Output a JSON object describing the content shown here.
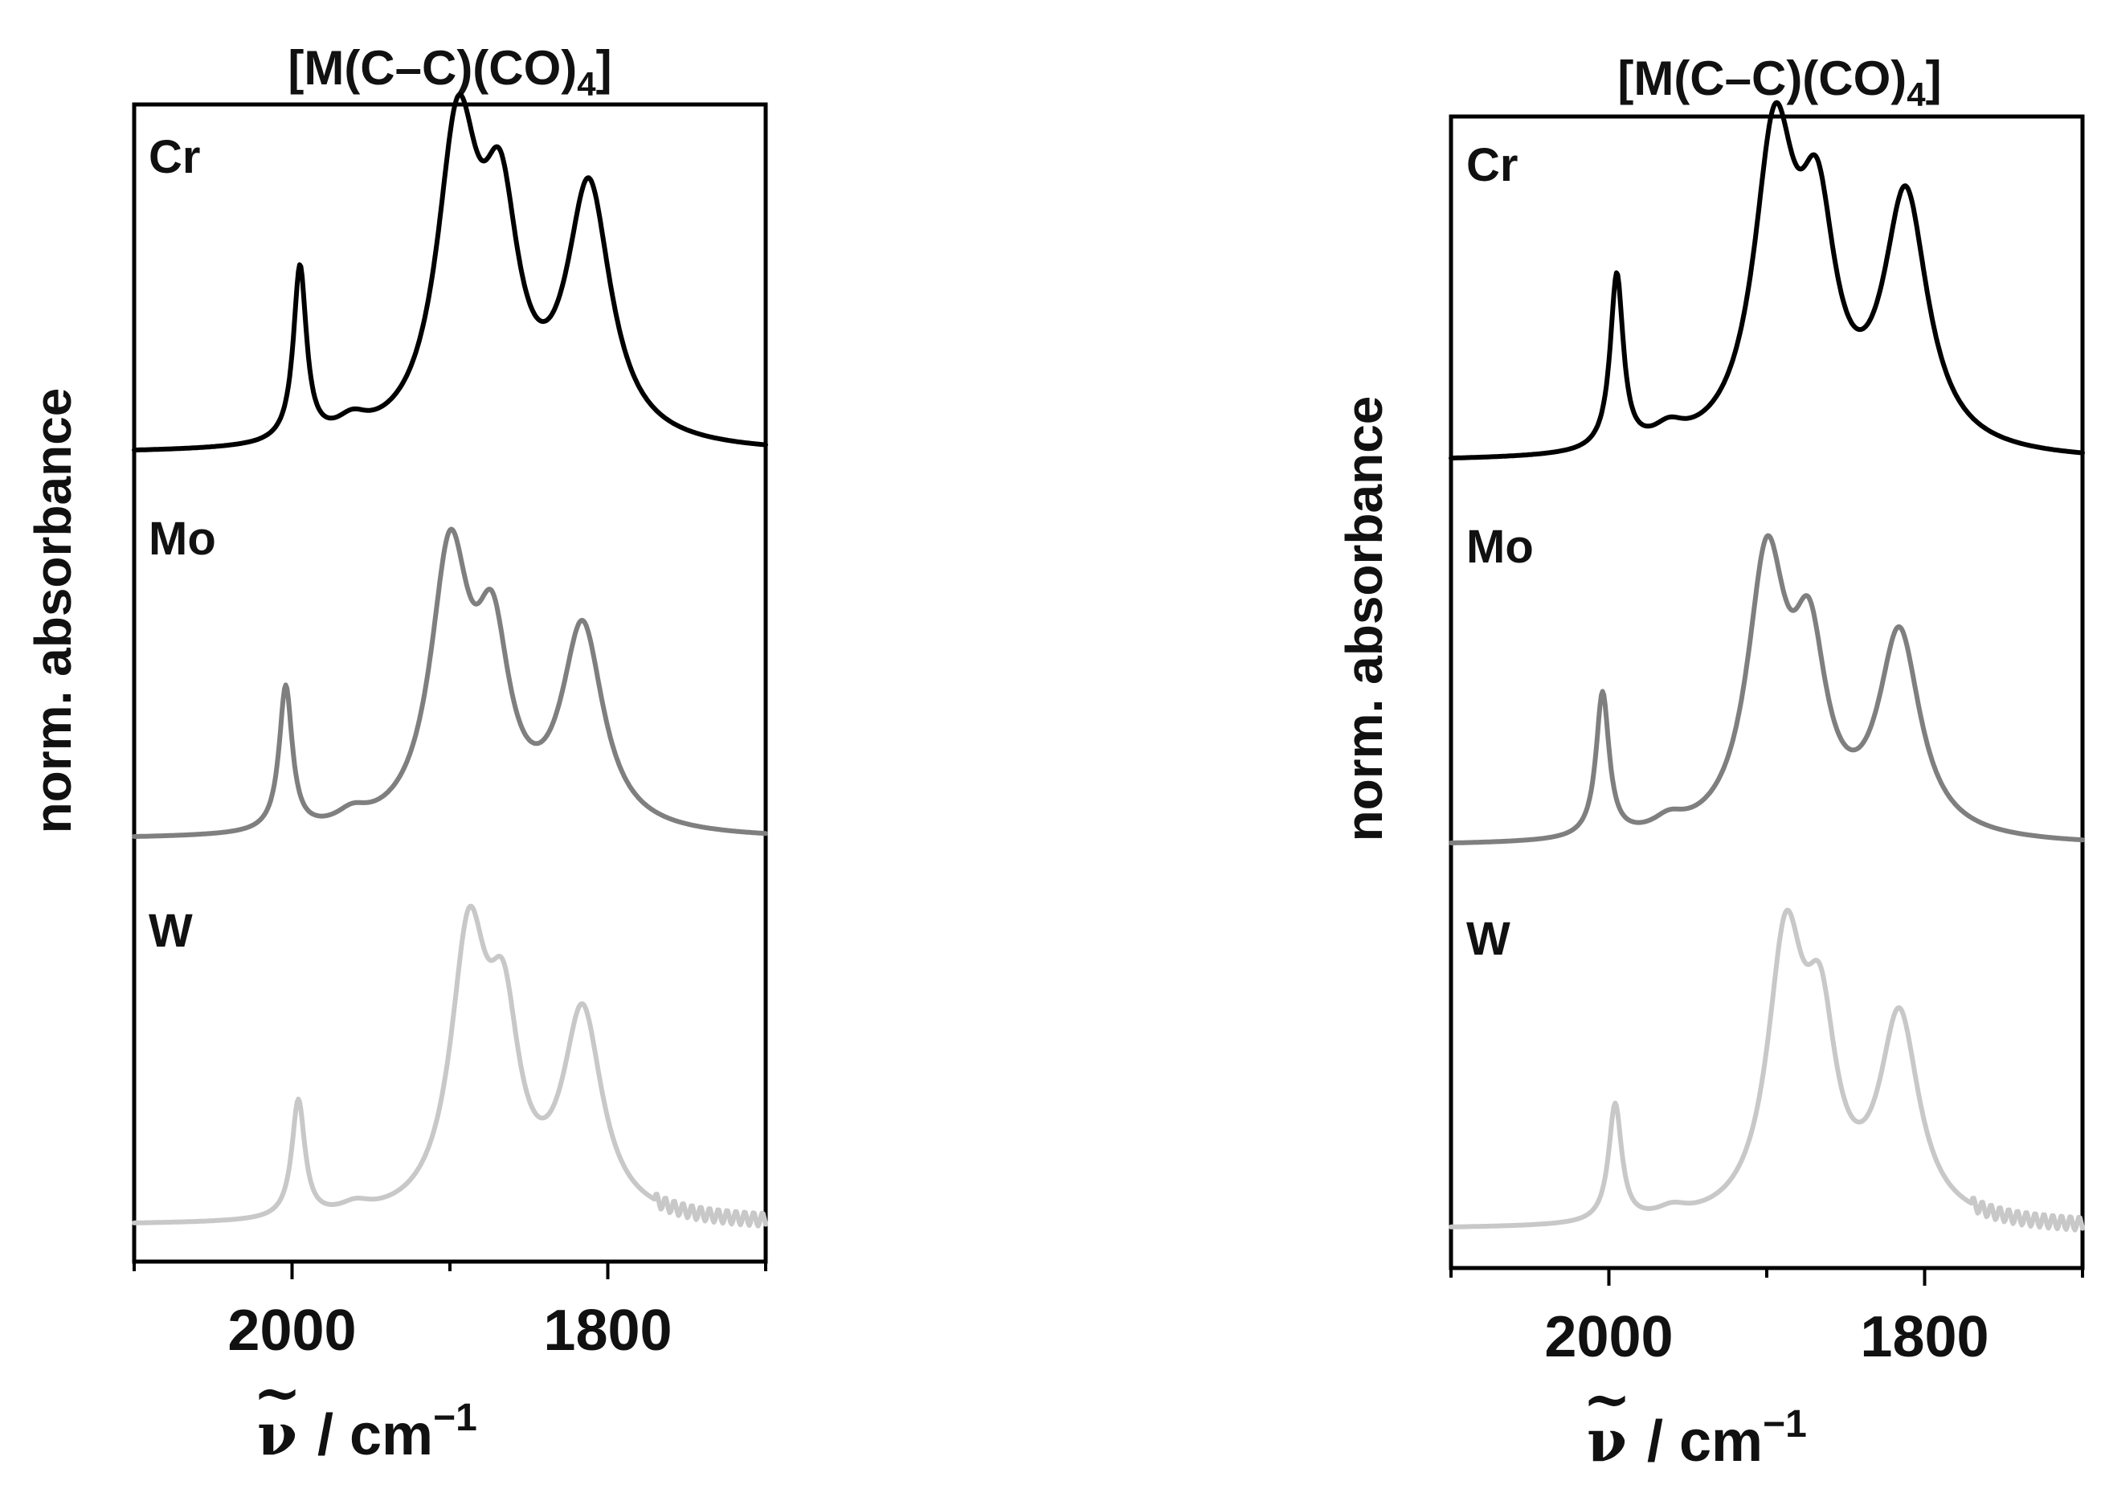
{
  "chart_data": [
    {
      "type": "line",
      "panel": "left",
      "title_main": "[M(C–C)(CO)",
      "title_sub": "4",
      "title_end": "]",
      "ylabel": "norm. absorbance",
      "xlabel_symbol": "ν",
      "xlabel_tilde": "~",
      "xlabel_unit": " / cm",
      "xlabel_exp": "−1",
      "xlim": [
        2100,
        1700
      ],
      "xticks_major": [
        2000,
        1800
      ],
      "xtick_labels": [
        "2000",
        "1800"
      ],
      "xticks_minor": [
        2100,
        1900,
        1700
      ],
      "series": [
        {
          "name": "Cr",
          "color": "#000000",
          "offset": 2.0,
          "baseline": 0.0,
          "bands": [
            {
              "x": 1995,
              "h": 0.52,
              "w": 5
            },
            {
              "x": 1962,
              "h": 0.05,
              "w": 12
            },
            {
              "x": 1895,
              "h": 0.9,
              "w": 16
            },
            {
              "x": 1868,
              "h": 0.6,
              "w": 14
            },
            {
              "x": 1812,
              "h": 0.75,
              "w": 17
            }
          ]
        },
        {
          "name": "Mo",
          "color": "#7f7f7f",
          "offset": 1.0,
          "baseline": 0.0,
          "bands": [
            {
              "x": 2004,
              "h": 0.43,
              "w": 5
            },
            {
              "x": 1962,
              "h": 0.04,
              "w": 12
            },
            {
              "x": 1900,
              "h": 0.8,
              "w": 15
            },
            {
              "x": 1873,
              "h": 0.5,
              "w": 13
            },
            {
              "x": 1816,
              "h": 0.6,
              "w": 16
            }
          ]
        },
        {
          "name": "W",
          "color": "#c8c8c8",
          "offset": 0.0,
          "baseline": 0.0,
          "bands": [
            {
              "x": 1996,
              "h": 0.35,
              "w": 5
            },
            {
              "x": 1960,
              "h": 0.03,
              "w": 12
            },
            {
              "x": 1888,
              "h": 0.8,
              "w": 14
            },
            {
              "x": 1866,
              "h": 0.5,
              "w": 12
            },
            {
              "x": 1816,
              "h": 0.6,
              "w": 15
            }
          ]
        }
      ]
    },
    {
      "type": "line",
      "panel": "right",
      "title_main": "[M(C–C)(CO)",
      "title_sub": "4",
      "title_end": "]",
      "ylabel": "norm. absorbance",
      "xlabel_symbol": "ν",
      "xlabel_tilde": "~",
      "xlabel_unit": " / cm",
      "xlabel_exp": "−1",
      "xlim": [
        2100,
        1700
      ],
      "xticks_major": [
        2000,
        1800
      ],
      "xtick_labels": [
        "2000",
        "1800"
      ],
      "xticks_minor": [
        2100,
        1900,
        1700
      ],
      "series": [
        {
          "name": "Cr",
          "color": "#000000",
          "offset": 2.0,
          "baseline": 0.0,
          "bands": [
            {
              "x": 1995,
              "h": 0.52,
              "w": 5
            },
            {
              "x": 1962,
              "h": 0.05,
              "w": 12
            },
            {
              "x": 1895,
              "h": 0.9,
              "w": 16
            },
            {
              "x": 1868,
              "h": 0.6,
              "w": 14
            },
            {
              "x": 1812,
              "h": 0.75,
              "w": 17
            }
          ]
        },
        {
          "name": "Mo",
          "color": "#7f7f7f",
          "offset": 1.0,
          "baseline": 0.0,
          "bands": [
            {
              "x": 2004,
              "h": 0.43,
              "w": 5
            },
            {
              "x": 1962,
              "h": 0.04,
              "w": 12
            },
            {
              "x": 1900,
              "h": 0.8,
              "w": 15
            },
            {
              "x": 1873,
              "h": 0.5,
              "w": 13
            },
            {
              "x": 1816,
              "h": 0.6,
              "w": 16
            }
          ]
        },
        {
          "name": "W",
          "color": "#c8c8c8",
          "offset": 0.0,
          "baseline": 0.0,
          "bands": [
            {
              "x": 1996,
              "h": 0.35,
              "w": 5
            },
            {
              "x": 1960,
              "h": 0.03,
              "w": 12
            },
            {
              "x": 1888,
              "h": 0.8,
              "w": 14
            },
            {
              "x": 1866,
              "h": 0.5,
              "w": 12
            },
            {
              "x": 1816,
              "h": 0.6,
              "w": 15
            }
          ]
        }
      ]
    }
  ]
}
